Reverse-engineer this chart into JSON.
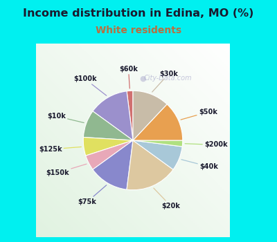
{
  "title": "Income distribution in Edina, MO (%)",
  "subtitle": "White residents",
  "title_color": "#1a1a2e",
  "subtitle_color": "#b87040",
  "bg_cyan": "#00f0f0",
  "watermark": "City-Data.com",
  "labels": [
    "$60k",
    "$100k",
    "$10k",
    "$125k",
    "$150k",
    "$75k",
    "$20k",
    "$40k",
    "$200k",
    "$50k",
    "$30k"
  ],
  "values": [
    2,
    13,
    9,
    6,
    5,
    13,
    17,
    8,
    2,
    13,
    12
  ],
  "colors": [
    "#d07070",
    "#9b90cc",
    "#90b890",
    "#e0e060",
    "#e8a8b8",
    "#8888cc",
    "#ddc8a0",
    "#a8c8d8",
    "#b0e080",
    "#e8a050",
    "#c8bca8"
  ],
  "startangle": 90,
  "figsize": [
    4.0,
    3.5
  ],
  "dpi": 100
}
